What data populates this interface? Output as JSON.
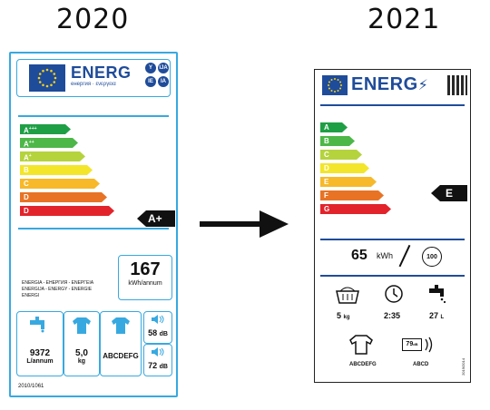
{
  "years": {
    "left": "2020",
    "right": "2021"
  },
  "old_label": {
    "header": {
      "title": "ENERG",
      "languages": "енергия · ενεργεια",
      "circles": [
        "Y",
        "IJA",
        "IE",
        "IA"
      ]
    },
    "classes": [
      {
        "letter": "A",
        "plus": "+++",
        "color": "#1f9f45"
      },
      {
        "letter": "A",
        "plus": "++",
        "color": "#4db748"
      },
      {
        "letter": "A",
        "plus": "+",
        "color": "#b5d33d"
      },
      {
        "letter": "B",
        "plus": "",
        "color": "#f3e52a"
      },
      {
        "letter": "C",
        "plus": "",
        "color": "#f7b929"
      },
      {
        "letter": "D",
        "plus": "",
        "color": "#e87324"
      },
      {
        "letter": "D",
        "plus": "",
        "color": "#e2232b"
      }
    ],
    "rating": "A+",
    "annual_energy": {
      "value": "167",
      "unit": "kWh/annum"
    },
    "countries_text": "ENERGIA - ЕНЕРГИЯ - ΕΝΕΡΓΕΙΑ\nENERGIJA - ENERGY - ENERGIE\nENERGI",
    "water": {
      "value": "9372",
      "unit": "L/annum"
    },
    "capacity": {
      "value": "5,0",
      "unit": "kg"
    },
    "spin_class": "ABCDEFG",
    "noise_wash": {
      "value": "58",
      "unit": "dB"
    },
    "noise_spin": {
      "value": "72",
      "unit": "dB"
    },
    "footer": "2010/1061"
  },
  "new_label": {
    "header": {
      "title": "ENERG"
    },
    "classes": [
      {
        "letter": "A",
        "color": "#1f9f45"
      },
      {
        "letter": "B",
        "color": "#4db748"
      },
      {
        "letter": "C",
        "color": "#b5d33d"
      },
      {
        "letter": "D",
        "color": "#f3e52a"
      },
      {
        "letter": "E",
        "color": "#f7b929"
      },
      {
        "letter": "F",
        "color": "#e87324"
      },
      {
        "letter": "G",
        "color": "#e2232b"
      }
    ],
    "rating": "E",
    "energy": {
      "value": "65",
      "unit": "kWh",
      "cycles": "100"
    },
    "capacity": {
      "value": "5",
      "unit": "kg"
    },
    "duration": "2:35",
    "water": {
      "value": "27",
      "unit": "L"
    },
    "spin_class": "ABCDEFG",
    "noise": {
      "value": "79",
      "unit": "dB",
      "class": "ABCD"
    },
    "regulation_code": "2019/2014"
  }
}
